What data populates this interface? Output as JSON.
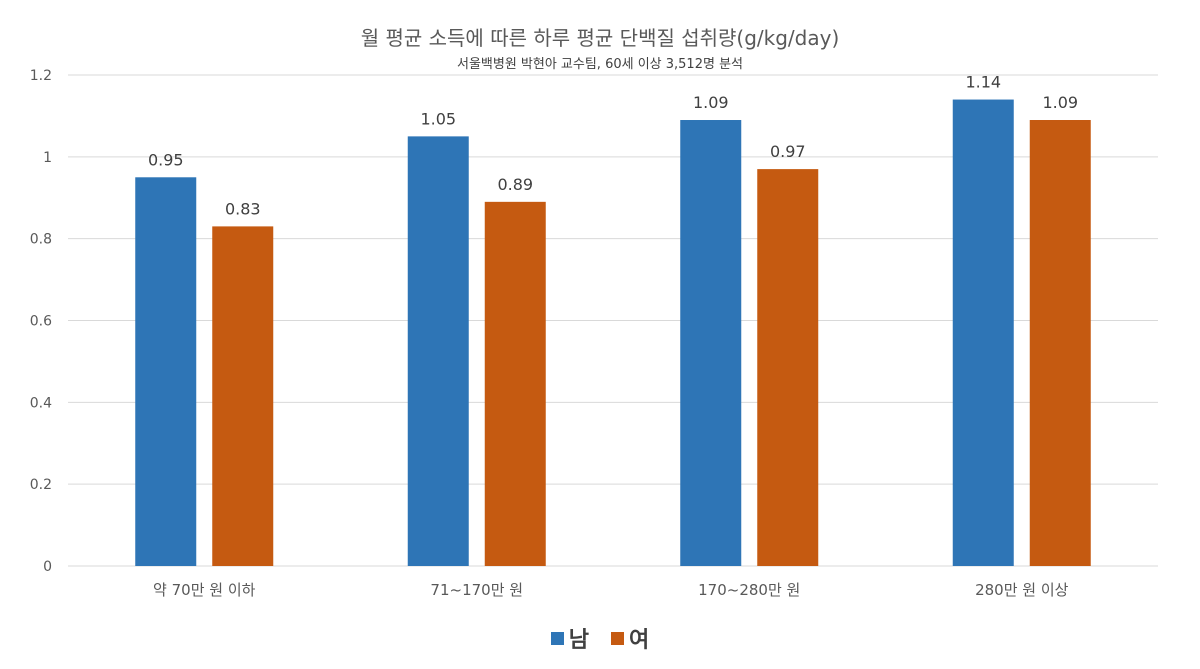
{
  "colors": {
    "male": "#2e75b6",
    "female": "#c55a11",
    "grid": "#d9d9d9",
    "axis_text": "#595959"
  },
  "chart_data": {
    "type": "bar",
    "title": "월 평균 소득에 따른 하루 평균 단백질 섭취량(g/kg/day)",
    "subtitle": "서울백병원 박현아 교수팀, 60세 이상 3,512명 분석",
    "categories": [
      "약 70만 원 이하",
      "71~170만 원",
      "170~280만 원",
      "280만 원 이상"
    ],
    "series": [
      {
        "name": "남",
        "values": [
          0.95,
          1.05,
          1.09,
          1.14
        ]
      },
      {
        "name": "여",
        "values": [
          0.83,
          0.89,
          0.97,
          1.09
        ]
      }
    ],
    "data_labels": [
      [
        "0.95",
        "1.05",
        "1.09",
        "1.14"
      ],
      [
        "0.83",
        "0.89",
        "0.97",
        "1.09"
      ]
    ],
    "ylim": [
      0,
      1.2
    ],
    "yticks": [
      "0",
      "0.2",
      "0.4",
      "0.6",
      "0.8",
      "1",
      "1.2"
    ],
    "grid": true,
    "legend": "bottom-center",
    "xlabel": "",
    "ylabel": ""
  }
}
